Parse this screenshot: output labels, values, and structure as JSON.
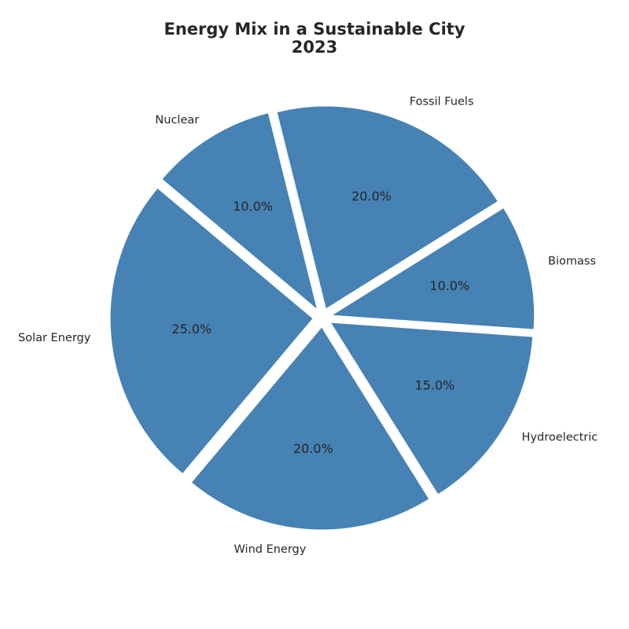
{
  "chart_data": {
    "type": "pie",
    "title": "Energy Mix in a Sustainable City",
    "subtitle": "2023",
    "categories": [
      "Solar Energy",
      "Wind Energy",
      "Hydroelectric",
      "Biomass",
      "Fossil Fuels",
      "Nuclear"
    ],
    "values": [
      25,
      20,
      15,
      10,
      20,
      10
    ],
    "value_labels": [
      "25.0%",
      "20.0%",
      "15.0%",
      "10.0%",
      "20.0%",
      "10.0%"
    ],
    "start_angle_deg": 140,
    "direction": "counterclockwise",
    "exploded": true,
    "legend": "none",
    "slice_color": "#4682b4"
  }
}
